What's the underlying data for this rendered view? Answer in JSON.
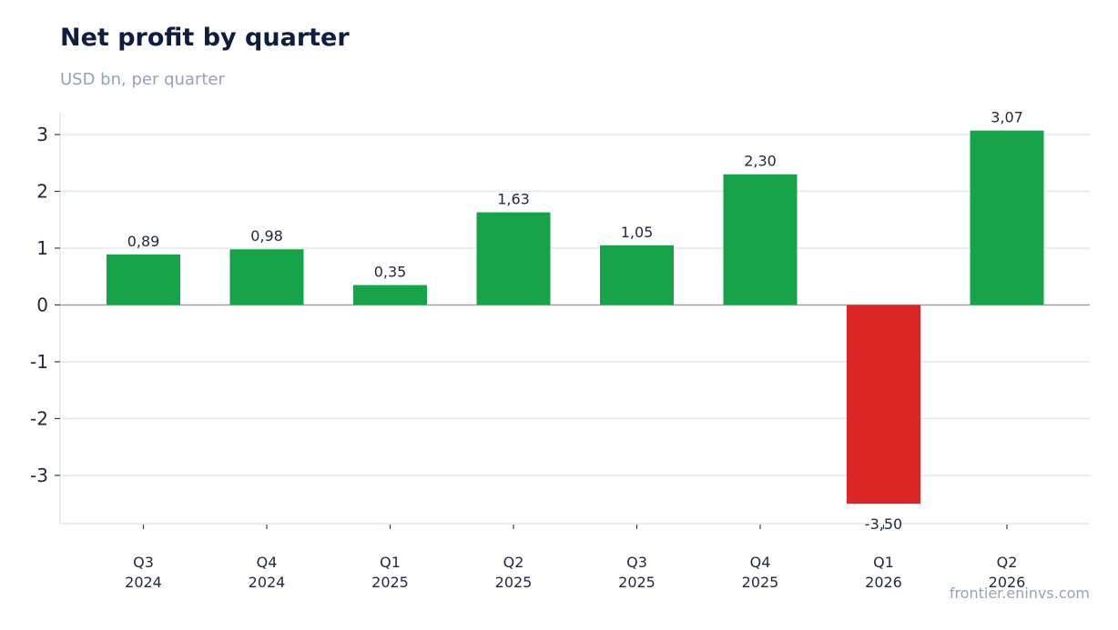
{
  "chart_data": {
    "type": "bar",
    "title": "Net profit by quarter",
    "subtitle": "USD bn, per quarter",
    "source": "frontier.eninvs.com",
    "categories": [
      [
        "Q3",
        "2024"
      ],
      [
        "Q4",
        "2024"
      ],
      [
        "Q1",
        "2025"
      ],
      [
        "Q2",
        "2025"
      ],
      [
        "Q3",
        "2025"
      ],
      [
        "Q4",
        "2025"
      ],
      [
        "Q1",
        "2026"
      ],
      [
        "Q2",
        "2026"
      ]
    ],
    "values": [
      0.89,
      0.98,
      0.35,
      1.63,
      1.05,
      2.3,
      -3.5,
      3.07
    ],
    "data_labels": [
      "0,89",
      "0,98",
      "0,35",
      "1,63",
      "1,05",
      "2,30",
      "-3,50",
      "3,07"
    ],
    "yticks": [
      3,
      2,
      1,
      0,
      -1,
      -2,
      -3
    ],
    "ytick_labels": [
      "3",
      "2",
      "1",
      "0",
      "-1",
      "-2",
      "-3"
    ],
    "ylim": [
      -3.85,
      3.4
    ],
    "grid": true,
    "colors": {
      "positive": "#16a34a",
      "negative": "#dc2626",
      "grid": "#e2e8f0",
      "zero_line": "#94a3b8"
    }
  }
}
